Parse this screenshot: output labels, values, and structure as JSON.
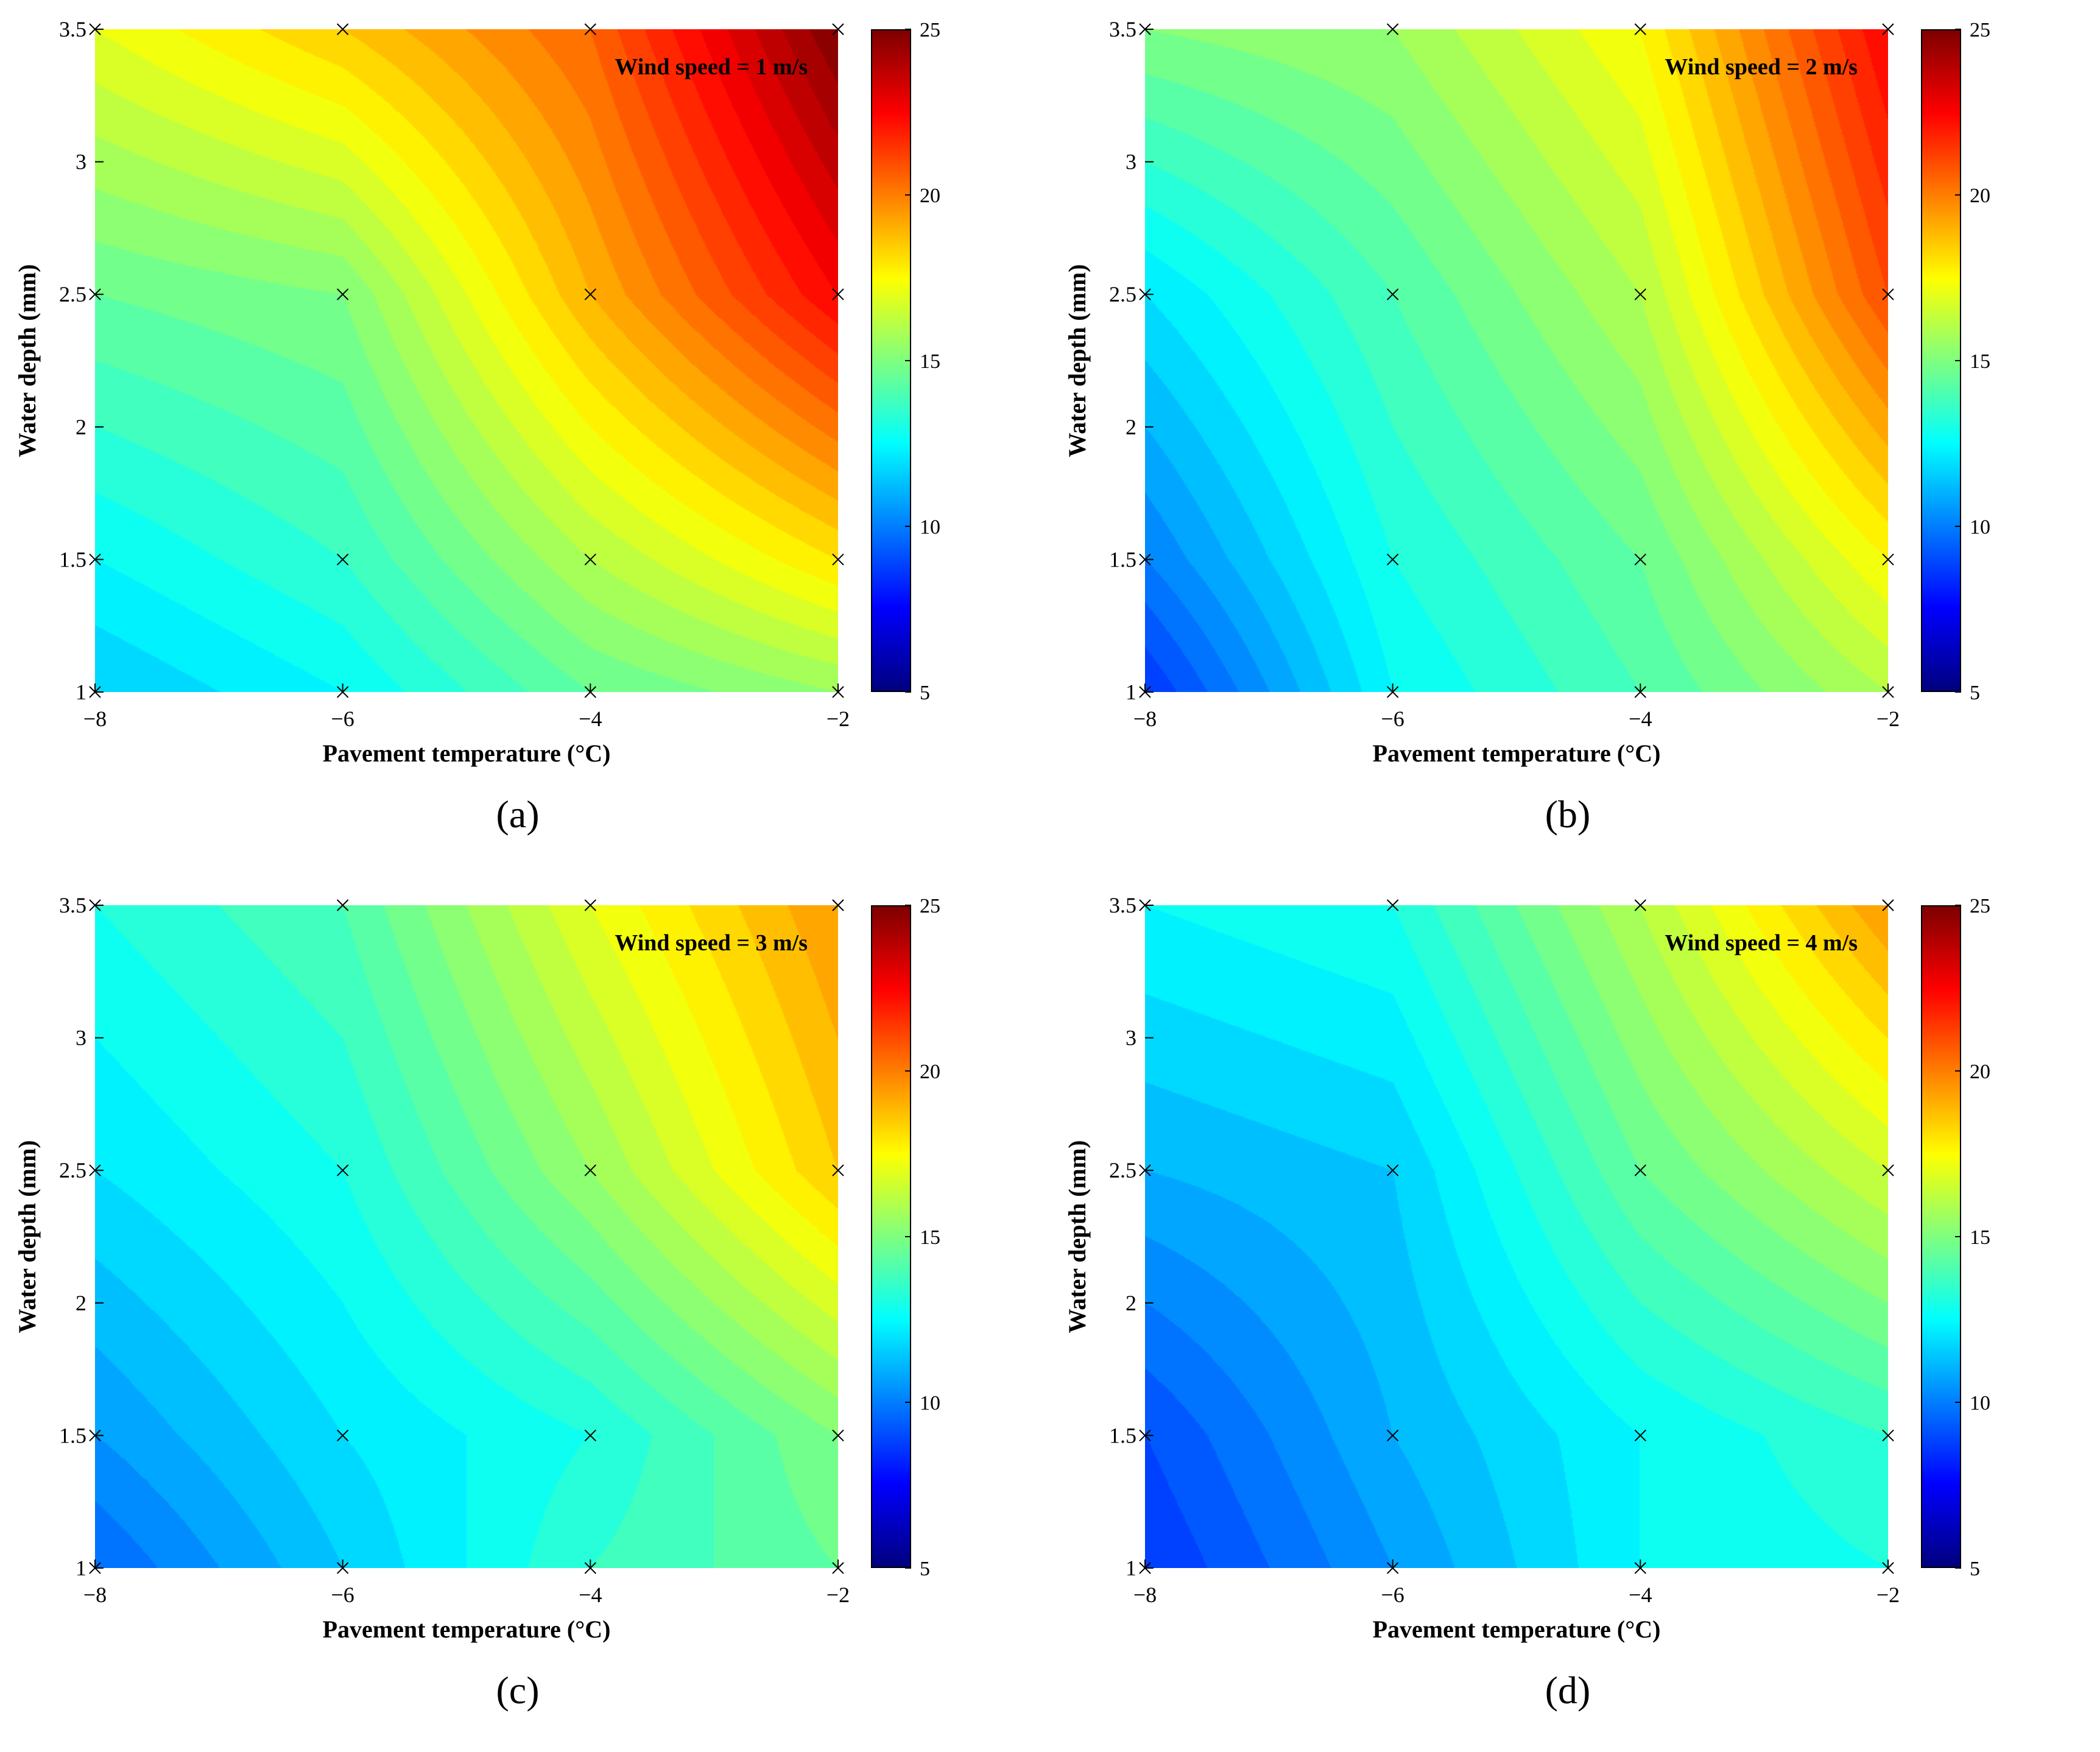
{
  "panels": [
    {
      "id": "a",
      "sublabel": "(a)",
      "chart_data": {
        "type": "heatmap",
        "annotation": "Wind speed = 1 m/s",
        "xlabel": "Pavement temperature (°C)",
        "ylabel": "Water depth (mm)",
        "x": [
          -8,
          -6,
          -4,
          -2
        ],
        "y": [
          1,
          1.5,
          2.5,
          3.5
        ],
        "x_ticks": [
          -8,
          -6,
          -4,
          -2
        ],
        "y_ticks": [
          1,
          1.5,
          2,
          2.5,
          3,
          3.5
        ],
        "xlim": [
          -8,
          -2
        ],
        "ylim": [
          1,
          3.5
        ],
        "colorbar": {
          "min": 5,
          "max": 25,
          "ticks": [
            5,
            10,
            15,
            20,
            25
          ]
        },
        "z": [
          [
            11.5,
            12.5,
            14.5,
            15.5
          ],
          [
            12.5,
            13.5,
            16.0,
            18.0
          ],
          [
            14.5,
            15.0,
            19.0,
            22.5
          ],
          [
            17.0,
            18.5,
            20.5,
            25.0
          ]
        ]
      }
    },
    {
      "id": "b",
      "sublabel": "(b)",
      "chart_data": {
        "type": "heatmap",
        "annotation": "Wind speed = 2 m/s",
        "xlabel": "Pavement temperature (°C)",
        "ylabel": "Water depth (mm)",
        "x": [
          -8,
          -6,
          -4,
          -2
        ],
        "y": [
          1,
          1.5,
          2.5,
          3.5
        ],
        "x_ticks": [
          -8,
          -6,
          -4,
          -2
        ],
        "y_ticks": [
          1,
          1.5,
          2,
          2.5,
          3,
          3.5
        ],
        "xlim": [
          -8,
          -2
        ],
        "ylim": [
          1,
          3.5
        ],
        "colorbar": {
          "min": 5,
          "max": 25,
          "ticks": [
            5,
            10,
            15,
            20,
            25
          ]
        },
        "z": [
          [
            8.5,
            12.5,
            14.0,
            16.0
          ],
          [
            10.0,
            13.0,
            14.5,
            17.5
          ],
          [
            12.0,
            14.0,
            16.0,
            21.0
          ],
          [
            15.0,
            15.5,
            17.5,
            22.5
          ]
        ]
      }
    },
    {
      "id": "c",
      "sublabel": "(c)",
      "chart_data": {
        "type": "heatmap",
        "annotation": "Wind speed = 3 m/s",
        "xlabel": "Pavement temperature (°C)",
        "ylabel": "Water depth (mm)",
        "x": [
          -8,
          -6,
          -4,
          -2
        ],
        "y": [
          1,
          1.5,
          2.5,
          3.5
        ],
        "x_ticks": [
          -8,
          -6,
          -4,
          -2
        ],
        "y_ticks": [
          1,
          1.5,
          2,
          2.5,
          3,
          3.5
        ],
        "xlim": [
          -8,
          -2
        ],
        "ylim": [
          1,
          3.5
        ],
        "colorbar": {
          "min": 5,
          "max": 25,
          "ticks": [
            5,
            10,
            15,
            20,
            25
          ]
        },
        "z": [
          [
            9.5,
            11.5,
            13.5,
            14.5
          ],
          [
            10.5,
            12.0,
            13.0,
            15.0
          ],
          [
            12.0,
            13.0,
            15.5,
            18.5
          ],
          [
            13.0,
            14.0,
            17.0,
            19.5
          ]
        ]
      }
    },
    {
      "id": "d",
      "sublabel": "(d)",
      "chart_data": {
        "type": "heatmap",
        "annotation": "Wind speed = 4 m/s",
        "xlabel": "Pavement temperature (°C)",
        "ylabel": "Water depth (mm)",
        "x": [
          -8,
          -6,
          -4,
          -2
        ],
        "y": [
          1,
          1.5,
          2.5,
          3.5
        ],
        "x_ticks": [
          -8,
          -6,
          -4,
          -2
        ],
        "y_ticks": [
          1,
          1.5,
          2,
          2.5,
          3,
          3.5
        ],
        "xlim": [
          -8,
          -2
        ],
        "ylim": [
          1,
          3.5
        ],
        "colorbar": {
          "min": 5,
          "max": 25,
          "ticks": [
            5,
            10,
            15,
            20,
            25
          ]
        },
        "z": [
          [
            8.5,
            10.5,
            12.5,
            13.0
          ],
          [
            9.0,
            11.0,
            12.5,
            13.5
          ],
          [
            11.0,
            11.5,
            14.5,
            16.5
          ],
          [
            12.5,
            13.0,
            16.0,
            19.5
          ]
        ]
      }
    }
  ]
}
